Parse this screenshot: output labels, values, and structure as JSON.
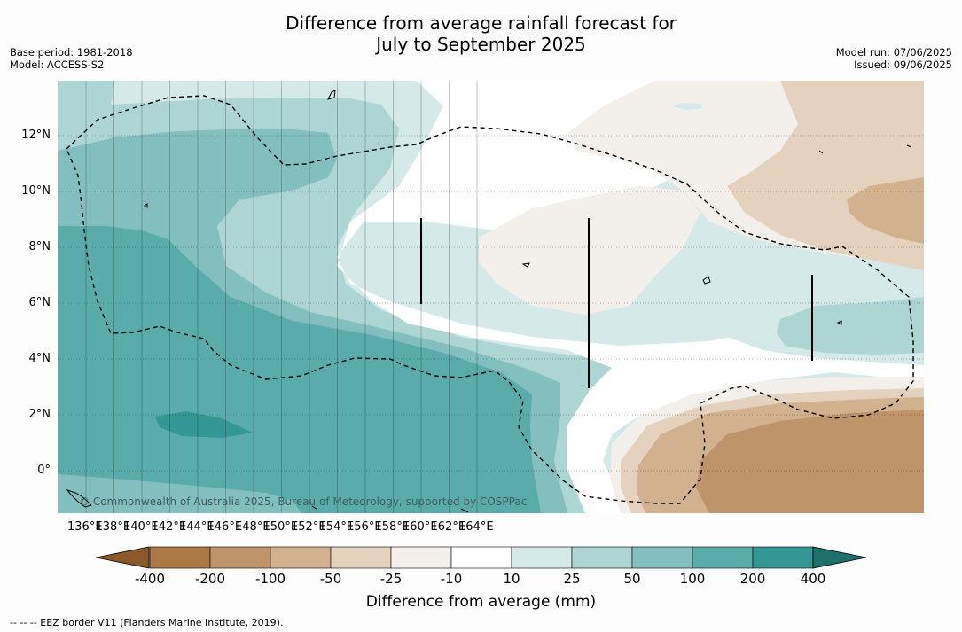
{
  "header": {
    "title_line1": "Difference from average rainfall forecast for",
    "title_line2": "July to September 2025",
    "base_period": "Base period: 1981-2018",
    "model": "Model: ACCESS-S2",
    "model_run": "Model run: 07/06/2025",
    "issued": "Issued: 09/06/2025"
  },
  "map": {
    "longitude_labels": [
      "136°E",
      "138°E",
      "140°E",
      "142°E",
      "144°E",
      "146°E",
      "148°E",
      "150°E",
      "152°E",
      "154°E",
      "156°E",
      "158°E",
      "160°E",
      "162°E",
      "164°E"
    ],
    "latitude_labels": [
      "12°N",
      "10°N",
      "8°N",
      "6°N",
      "4°N",
      "2°N",
      "0°"
    ],
    "copyright": "© Commonwealth of Australia 2025, Bureau of Meteorology, supported by COSPPac"
  },
  "colorbar": {
    "title": "Difference from average (mm)",
    "tick_labels": [
      "-400",
      "-200",
      "-100",
      "-50",
      "-25",
      "-10",
      "10",
      "25",
      "50",
      "100",
      "200",
      "400"
    ],
    "colors": [
      "#8c5a2a",
      "#ac7944",
      "#bf946a",
      "#d2b18f",
      "#e5d2be",
      "#f3efea",
      "#ffffff",
      "#d5e9e8",
      "#acd5d4",
      "#83bfbe",
      "#5aacab",
      "#339895",
      "#1f6f6d"
    ]
  },
  "footer": {
    "legend_text": "--  --  -- EEZ border V11 (Flanders Marine Institute, 2019)."
  }
}
